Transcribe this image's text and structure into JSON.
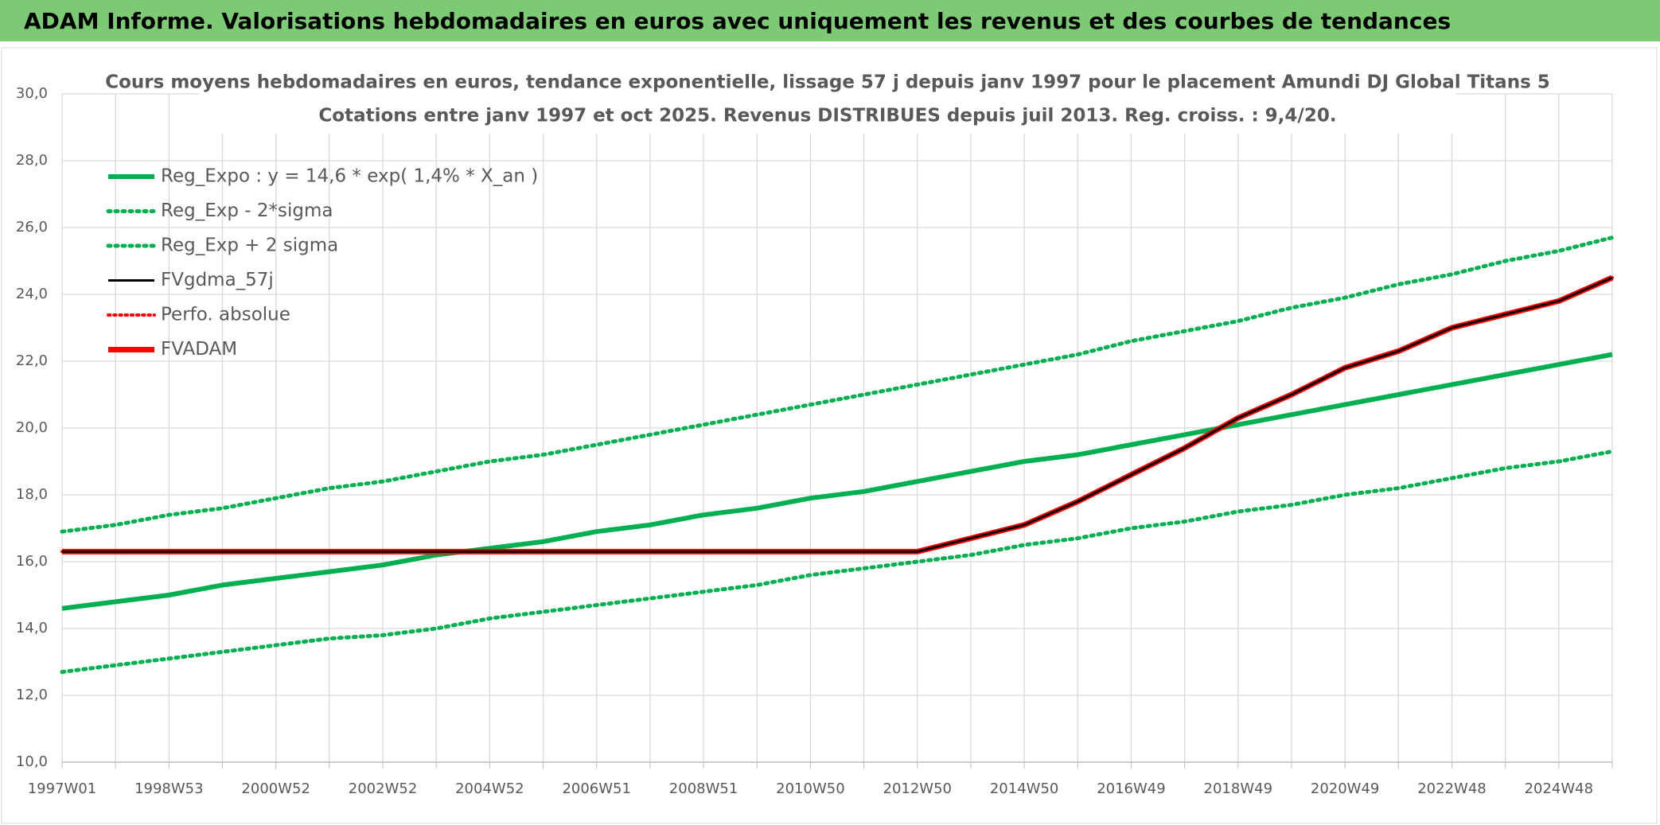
{
  "header": {
    "title": "ADAM Informe. Valorisations hebdomadaires en euros avec uniquement les revenus et des courbes de tendances"
  },
  "chart_data": {
    "type": "line",
    "title": "Cours moyens hebdomadaires en euros, tendance exponentielle, lissage 57 j depuis janv 1997 pour le placement Amundi DJ Global Titans 5",
    "subtitle": "Cotations entre janv 1997 et oct 2025. Revenus DISTRIBUES depuis juil 2013. Reg. croiss. : 9,4/20.",
    "categories": [
      "1997W01",
      null,
      "1998W53",
      null,
      "2000W52",
      null,
      "2002W52",
      null,
      "2004W52",
      null,
      "2006W51",
      null,
      "2008W51",
      null,
      "2010W50",
      null,
      "2012W50",
      null,
      "2014W50",
      null,
      "2016W49",
      null,
      "2018W49",
      null,
      "2020W49",
      null,
      "2022W48",
      null,
      "2024W48",
      null
    ],
    "ylim": [
      10,
      30
    ],
    "yticks": [
      {
        "value": 10,
        "label": "10,0"
      },
      {
        "value": 12,
        "label": "12,0"
      },
      {
        "value": 14,
        "label": "14,0"
      },
      {
        "value": 16,
        "label": "16,0"
      },
      {
        "value": 18,
        "label": "18,0"
      },
      {
        "value": 20,
        "label": "20,0"
      },
      {
        "value": 22,
        "label": "22,0"
      },
      {
        "value": 24,
        "label": "24,0"
      },
      {
        "value": 26,
        "label": "26,0"
      },
      {
        "value": 28,
        "label": "28,0"
      },
      {
        "value": 30,
        "label": "30,0"
      }
    ],
    "grid": true,
    "legend": "upper left",
    "series": [
      {
        "name": "Reg_Expo : y = 14,6 * exp( 1,4% *  X_an )",
        "color": "#00b050",
        "dash": "solid",
        "width": 6,
        "values": [
          14.6,
          14.8,
          15.0,
          15.3,
          15.5,
          15.7,
          15.9,
          16.2,
          16.4,
          16.6,
          16.9,
          17.1,
          17.4,
          17.6,
          17.9,
          18.1,
          18.4,
          18.7,
          19.0,
          19.2,
          19.5,
          19.8,
          20.1,
          20.4,
          20.7,
          21.0,
          21.3,
          21.6,
          21.9,
          22.2
        ]
      },
      {
        "name": "Reg_Exp - 2*sigma",
        "color": "#00b050",
        "dash": "dotted",
        "width": 5,
        "values": [
          12.7,
          12.9,
          13.1,
          13.3,
          13.5,
          13.7,
          13.8,
          14.0,
          14.3,
          14.5,
          14.7,
          14.9,
          15.1,
          15.3,
          15.6,
          15.8,
          16.0,
          16.2,
          16.5,
          16.7,
          17.0,
          17.2,
          17.5,
          17.7,
          18.0,
          18.2,
          18.5,
          18.8,
          19.0,
          19.3
        ]
      },
      {
        "name": "Reg_Exp + 2 sigma",
        "color": "#00b050",
        "dash": "dotted",
        "width": 5,
        "values": [
          16.9,
          17.1,
          17.4,
          17.6,
          17.9,
          18.2,
          18.4,
          18.7,
          19.0,
          19.2,
          19.5,
          19.8,
          20.1,
          20.4,
          20.7,
          21.0,
          21.3,
          21.6,
          21.9,
          22.2,
          22.6,
          22.9,
          23.2,
          23.6,
          23.9,
          24.3,
          24.6,
          25.0,
          25.3,
          25.7
        ]
      },
      {
        "name": "FVgdma_57j",
        "color": "#000000",
        "dash": "solid",
        "width": 3,
        "values": [
          16.3,
          16.3,
          16.3,
          16.3,
          16.3,
          16.3,
          16.3,
          16.3,
          16.3,
          16.3,
          16.3,
          16.3,
          16.3,
          16.3,
          16.3,
          16.3,
          16.3,
          16.7,
          17.1,
          17.8,
          18.6,
          19.4,
          20.3,
          21.0,
          21.8,
          22.3,
          23.0,
          23.4,
          23.8,
          24.5
        ]
      },
      {
        "name": "Perfo. absolue",
        "color": "#ff0000",
        "dash": "dotted",
        "width": 4,
        "values": [
          16.3,
          16.3,
          16.3,
          16.3,
          16.3,
          16.3,
          16.3,
          16.3,
          16.3,
          16.3,
          16.3,
          16.3,
          16.3,
          16.3,
          16.3,
          16.3,
          16.3,
          16.7,
          17.1,
          17.8,
          18.6,
          19.4,
          20.3,
          21.0,
          21.8,
          22.3,
          23.0,
          23.4,
          23.8,
          24.5
        ]
      },
      {
        "name": "FVADAM",
        "color": "#ff0000",
        "dash": "solid",
        "width": 7,
        "values": [
          16.3,
          16.3,
          16.3,
          16.3,
          16.3,
          16.3,
          16.3,
          16.3,
          16.3,
          16.3,
          16.3,
          16.3,
          16.3,
          16.3,
          16.3,
          16.3,
          16.3,
          16.7,
          17.1,
          17.8,
          18.6,
          19.4,
          20.3,
          21.0,
          21.8,
          22.3,
          23.0,
          23.4,
          23.8,
          24.5
        ]
      }
    ]
  }
}
